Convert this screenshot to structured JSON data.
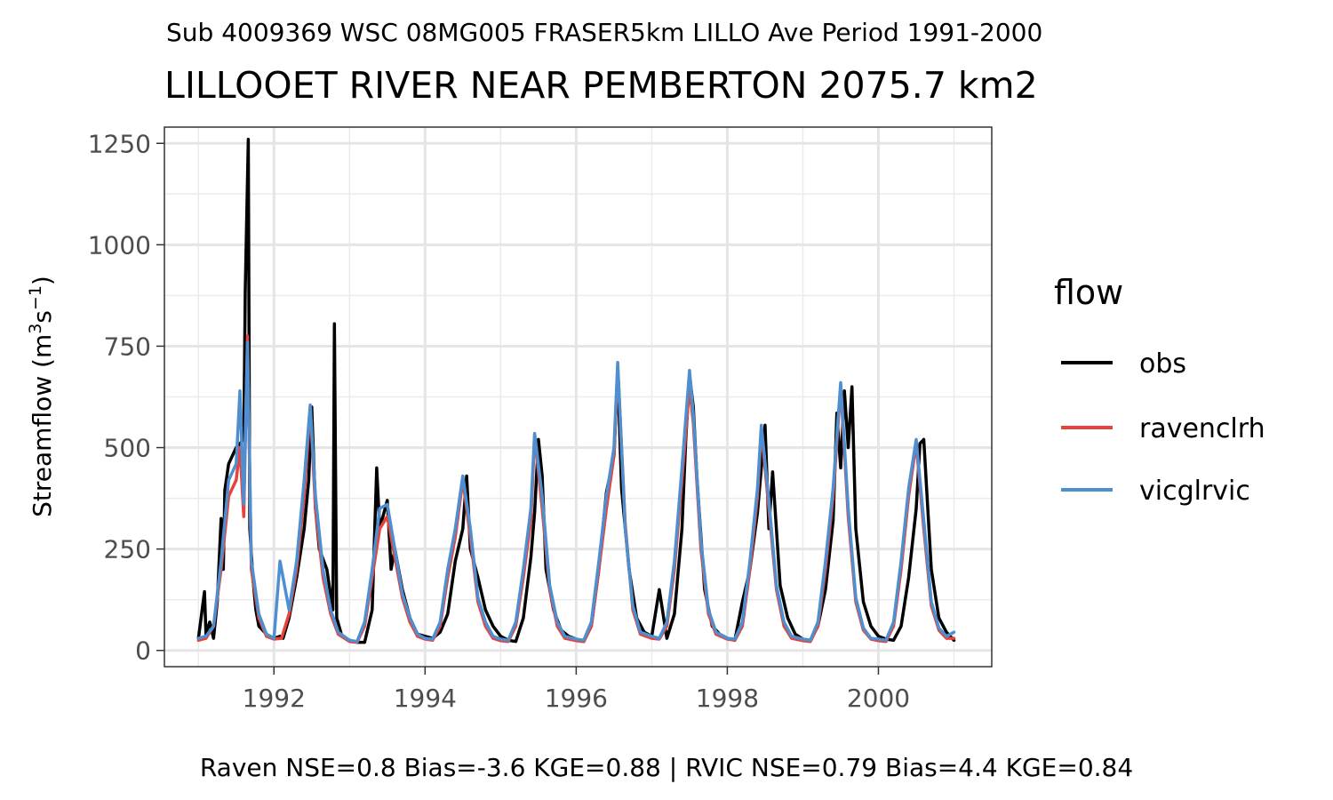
{
  "subtitle": "Sub 4009369 WSC 08MG005 FRASER5km LILLO Ave Period 1991-2000",
  "title": "LILLOOET RIVER NEAR PEMBERTON 2075.7 km2",
  "caption": "Raven NSE=0.8 Bias=-3.6 KGE=0.88 | RVIC NSE=0.79 Bias=4.4 KGE=0.84",
  "chart_data": {
    "type": "line",
    "ylabel_main": "Streamflow (m",
    "ylabel_sup1": "3",
    "ylabel_mid": "s",
    "ylabel_sup2": "−1",
    "ylabel_end": ")",
    "xlim": [
      1990.55,
      2001.5
    ],
    "ylim": [
      -40,
      1290
    ],
    "x_ticks": [
      1992,
      1994,
      1996,
      1998,
      2000
    ],
    "x_tick_labels": [
      "1992",
      "1994",
      "1996",
      "1998",
      "2000"
    ],
    "x_minor_ticks": [
      1991,
      1993,
      1995,
      1997,
      1999,
      2001
    ],
    "y_ticks": [
      0,
      250,
      500,
      750,
      1000,
      1250
    ],
    "y_tick_labels": [
      "0",
      "250",
      "500",
      "750",
      "1000",
      "1250"
    ],
    "y_minor_ticks": [
      125,
      375,
      625,
      875,
      1125
    ],
    "grid": true,
    "legend": {
      "title": "flow",
      "position": "right"
    },
    "series": [
      {
        "name": "obs",
        "color": "#000000",
        "x": [
          1991.0,
          1991.08,
          1991.1,
          1991.15,
          1991.2,
          1991.25,
          1991.3,
          1991.33,
          1991.35,
          1991.4,
          1991.45,
          1991.5,
          1991.55,
          1991.6,
          1991.62,
          1991.66,
          1991.68,
          1991.72,
          1991.76,
          1991.8,
          1991.9,
          1992.0,
          1992.08,
          1992.12,
          1992.2,
          1992.3,
          1992.4,
          1992.46,
          1992.5,
          1992.55,
          1992.6,
          1992.7,
          1992.78,
          1992.8,
          1992.83,
          1992.9,
          1993.0,
          1993.1,
          1993.2,
          1993.3,
          1993.36,
          1993.4,
          1993.5,
          1993.55,
          1993.6,
          1993.7,
          1993.8,
          1993.9,
          1994.0,
          1994.1,
          1994.2,
          1994.3,
          1994.4,
          1994.5,
          1994.55,
          1994.6,
          1994.7,
          1994.8,
          1994.9,
          1995.0,
          1995.1,
          1995.2,
          1995.3,
          1995.4,
          1995.45,
          1995.5,
          1995.55,
          1995.6,
          1995.7,
          1995.8,
          1995.9,
          1996.0,
          1996.1,
          1996.2,
          1996.3,
          1996.4,
          1996.5,
          1996.55,
          1996.6,
          1996.7,
          1996.8,
          1996.9,
          1997.0,
          1997.1,
          1997.2,
          1997.3,
          1997.4,
          1997.45,
          1997.5,
          1997.55,
          1997.6,
          1997.7,
          1997.8,
          1997.9,
          1998.0,
          1998.1,
          1998.2,
          1998.3,
          1998.4,
          1998.45,
          1998.5,
          1998.55,
          1998.6,
          1998.7,
          1998.8,
          1998.9,
          1999.0,
          1999.1,
          1999.2,
          1999.3,
          1999.4,
          1999.45,
          1999.5,
          1999.55,
          1999.6,
          1999.65,
          1999.7,
          1999.8,
          1999.9,
          2000.0,
          2000.1,
          2000.2,
          2000.3,
          2000.4,
          2000.5,
          2000.55,
          2000.6,
          2000.7,
          2000.8,
          2000.9,
          2001.0
        ],
        "y": [
          30,
          145,
          40,
          70,
          30,
          120,
          325,
          200,
          395,
          460,
          480,
          500,
          510,
          520,
          890,
          1260,
          300,
          180,
          100,
          60,
          40,
          30,
          35,
          30,
          80,
          180,
          300,
          420,
          600,
          350,
          250,
          200,
          100,
          805,
          80,
          35,
          25,
          20,
          20,
          100,
          450,
          300,
          370,
          200,
          250,
          150,
          80,
          40,
          35,
          30,
          45,
          90,
          220,
          300,
          430,
          250,
          180,
          100,
          60,
          35,
          25,
          22,
          80,
          230,
          340,
          520,
          430,
          200,
          100,
          50,
          35,
          28,
          22,
          60,
          200,
          390,
          480,
          690,
          400,
          200,
          80,
          45,
          35,
          150,
          30,
          90,
          300,
          520,
          680,
          600,
          420,
          150,
          60,
          40,
          30,
          25,
          120,
          200,
          340,
          450,
          555,
          300,
          440,
          160,
          80,
          40,
          28,
          25,
          60,
          150,
          320,
          585,
          450,
          640,
          500,
          650,
          300,
          120,
          60,
          35,
          28,
          25,
          60,
          180,
          350,
          510,
          520,
          200,
          80,
          45,
          25
        ]
      },
      {
        "name": "ravenclrh",
        "color": "#e8433a",
        "x": [
          1991.0,
          1991.1,
          1991.2,
          1991.3,
          1991.4,
          1991.5,
          1991.55,
          1991.6,
          1991.65,
          1991.7,
          1991.8,
          1991.9,
          1992.0,
          1992.1,
          1992.2,
          1992.3,
          1992.4,
          1992.48,
          1992.55,
          1992.65,
          1992.75,
          1992.85,
          1993.0,
          1993.1,
          1993.2,
          1993.3,
          1993.4,
          1993.5,
          1993.6,
          1993.7,
          1993.8,
          1993.9,
          1994.0,
          1994.1,
          1994.2,
          1994.3,
          1994.4,
          1994.5,
          1994.6,
          1994.7,
          1994.8,
          1994.9,
          1995.0,
          1995.1,
          1995.2,
          1995.3,
          1995.4,
          1995.45,
          1995.55,
          1995.65,
          1995.75,
          1995.85,
          1996.0,
          1996.1,
          1996.2,
          1996.3,
          1996.4,
          1996.5,
          1996.55,
          1996.65,
          1996.75,
          1996.85,
          1997.0,
          1997.1,
          1997.2,
          1997.3,
          1997.4,
          1997.5,
          1997.55,
          1997.65,
          1997.75,
          1997.85,
          1998.0,
          1998.1,
          1998.2,
          1998.3,
          1998.4,
          1998.45,
          1998.55,
          1998.65,
          1998.75,
          1998.85,
          1999.0,
          1999.1,
          1999.2,
          1999.3,
          1999.4,
          1999.5,
          1999.6,
          1999.7,
          1999.8,
          1999.9,
          2000.0,
          2000.1,
          2000.2,
          2000.3,
          2000.4,
          2000.5,
          2000.6,
          2000.7,
          2000.8,
          2000.9,
          2001.0
        ],
        "y": [
          25,
          30,
          60,
          200,
          380,
          420,
          500,
          330,
          775,
          200,
          80,
          35,
          28,
          30,
          90,
          200,
          380,
          600,
          350,
          180,
          90,
          40,
          22,
          20,
          60,
          180,
          300,
          330,
          230,
          130,
          70,
          35,
          28,
          25,
          60,
          180,
          280,
          420,
          280,
          120,
          60,
          30,
          24,
          22,
          60,
          180,
          320,
          530,
          350,
          150,
          60,
          30,
          24,
          22,
          60,
          200,
          350,
          480,
          700,
          310,
          100,
          40,
          30,
          28,
          60,
          200,
          420,
          650,
          560,
          250,
          90,
          40,
          28,
          25,
          60,
          200,
          380,
          545,
          350,
          150,
          60,
          30,
          24,
          22,
          60,
          200,
          380,
          650,
          330,
          120,
          50,
          28,
          24,
          22,
          60,
          200,
          380,
          510,
          300,
          110,
          50,
          30,
          30
        ]
      },
      {
        "name": "vicglrvic",
        "color": "#4f8fcf",
        "x": [
          1991.0,
          1991.1,
          1991.2,
          1991.3,
          1991.4,
          1991.5,
          1991.55,
          1991.6,
          1991.65,
          1991.7,
          1991.8,
          1991.9,
          1992.0,
          1992.08,
          1992.2,
          1992.3,
          1992.4,
          1992.48,
          1992.55,
          1992.65,
          1992.75,
          1992.85,
          1993.0,
          1993.1,
          1993.2,
          1993.3,
          1993.4,
          1993.5,
          1993.6,
          1993.7,
          1993.8,
          1993.9,
          1994.0,
          1994.1,
          1994.2,
          1994.3,
          1994.4,
          1994.5,
          1994.6,
          1994.7,
          1994.8,
          1994.9,
          1995.0,
          1995.1,
          1995.2,
          1995.3,
          1995.4,
          1995.45,
          1995.55,
          1995.65,
          1995.75,
          1995.85,
          1996.0,
          1996.1,
          1996.2,
          1996.3,
          1996.4,
          1996.5,
          1996.55,
          1996.65,
          1996.75,
          1996.85,
          1997.0,
          1997.1,
          1997.2,
          1997.3,
          1997.4,
          1997.5,
          1997.55,
          1997.65,
          1997.75,
          1997.85,
          1998.0,
          1998.1,
          1998.2,
          1998.3,
          1998.4,
          1998.45,
          1998.55,
          1998.65,
          1998.75,
          1998.85,
          1999.0,
          1999.1,
          1999.2,
          1999.3,
          1999.4,
          1999.5,
          1999.6,
          1999.7,
          1999.8,
          1999.9,
          2000.0,
          2000.1,
          2000.2,
          2000.3,
          2000.4,
          2000.5,
          2000.6,
          2000.7,
          2000.8,
          2000.9,
          2001.0
        ],
        "y": [
          30,
          35,
          60,
          220,
          420,
          460,
          640,
          360,
          760,
          220,
          90,
          40,
          30,
          220,
          100,
          220,
          420,
          605,
          380,
          200,
          100,
          45,
          25,
          22,
          70,
          200,
          350,
          360,
          250,
          140,
          80,
          40,
          30,
          28,
          70,
          200,
          300,
          430,
          300,
          130,
          70,
          35,
          28,
          25,
          70,
          200,
          350,
          535,
          380,
          160,
          70,
          35,
          28,
          25,
          70,
          220,
          380,
          500,
          710,
          300,
          110,
          45,
          35,
          30,
          70,
          220,
          450,
          690,
          580,
          270,
          100,
          45,
          30,
          28,
          70,
          220,
          400,
          555,
          370,
          160,
          70,
          35,
          28,
          25,
          70,
          220,
          400,
          660,
          350,
          130,
          55,
          30,
          28,
          25,
          70,
          220,
          400,
          520,
          320,
          120,
          55,
          35,
          45
        ]
      }
    ]
  }
}
